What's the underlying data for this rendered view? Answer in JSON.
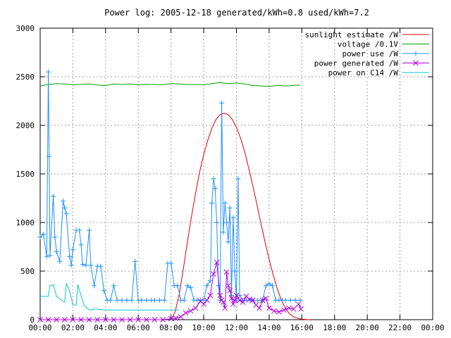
{
  "chart_data": {
    "type": "line",
    "title": "Power log: 2005-12-18 generated/kWh=0.8 used/kWh=7.2",
    "xlabel": "",
    "ylabel": "",
    "xlim_hours": [
      0,
      24
    ],
    "ylim": [
      0,
      3000
    ],
    "grid": true,
    "legend_position": "top-right",
    "x_ticks": [
      "00:00",
      "02:00",
      "04:00",
      "06:00",
      "08:00",
      "10:00",
      "12:00",
      "14:00",
      "16:00",
      "18:00",
      "20:00",
      "22:00",
      "00:00"
    ],
    "y_ticks": [
      "0",
      "500",
      "1000",
      "1500",
      "2000",
      "2500",
      "3000"
    ],
    "series": [
      {
        "name": "sunlight estimate /W",
        "color": "#e00000",
        "marker": "none",
        "x": [
          8.0,
          8.25,
          8.5,
          8.75,
          9.0,
          9.25,
          9.5,
          9.75,
          10.0,
          10.25,
          10.5,
          10.75,
          11.0,
          11.25,
          11.5,
          11.75,
          12.0,
          12.25,
          12.5,
          12.75,
          13.0,
          13.25,
          13.5,
          13.75,
          14.0,
          14.25,
          14.5,
          14.75,
          15.0,
          15.25,
          15.5,
          15.75,
          16.0,
          16.25,
          16.5
        ],
        "y": [
          0,
          80,
          260,
          520,
          800,
          1060,
          1300,
          1520,
          1700,
          1850,
          1970,
          2060,
          2110,
          2125,
          2110,
          2060,
          1980,
          1870,
          1730,
          1560,
          1380,
          1190,
          990,
          800,
          620,
          460,
          320,
          200,
          115,
          60,
          28,
          12,
          5,
          2,
          0
        ]
      },
      {
        "name": "voltage /0.1V",
        "color": "#00a000",
        "marker": "none",
        "x": [
          0.0,
          0.5,
          1.0,
          1.5,
          2.0,
          2.5,
          3.0,
          3.5,
          4.0,
          4.5,
          5.0,
          5.5,
          6.0,
          6.5,
          7.0,
          7.5,
          8.0,
          8.5,
          9.0,
          9.5,
          10.0,
          10.5,
          11.0,
          11.5,
          12.0,
          12.5,
          13.0,
          13.5,
          14.0,
          14.5,
          15.0,
          15.5,
          15.9
        ],
        "y": [
          2405,
          2420,
          2430,
          2425,
          2418,
          2422,
          2425,
          2415,
          2410,
          2425,
          2420,
          2425,
          2418,
          2422,
          2420,
          2418,
          2430,
          2425,
          2420,
          2420,
          2418,
          2430,
          2440,
          2430,
          2435,
          2425,
          2410,
          2405,
          2400,
          2410,
          2405,
          2410,
          2415
        ]
      },
      {
        "name": "power use /W",
        "color": "#1e90ff",
        "marker": "plus",
        "x": [
          0.0,
          0.2,
          0.4,
          0.5,
          0.55,
          0.6,
          0.8,
          0.9,
          1.0,
          1.2,
          1.4,
          1.5,
          1.6,
          1.8,
          1.9,
          2.0,
          2.2,
          2.4,
          2.5,
          2.6,
          2.8,
          3.0,
          3.1,
          3.3,
          3.5,
          3.7,
          3.9,
          4.1,
          4.3,
          4.5,
          4.7,
          5.0,
          5.3,
          5.6,
          5.8,
          6.0,
          6.2,
          6.5,
          6.8,
          7.0,
          7.3,
          7.6,
          7.8,
          8.0,
          8.2,
          8.4,
          8.6,
          8.8,
          9.0,
          9.2,
          9.4,
          9.6,
          9.8,
          10.0,
          10.2,
          10.4,
          10.5,
          10.6,
          10.7,
          10.8,
          10.9,
          11.0,
          11.1,
          11.2,
          11.3,
          11.4,
          11.5,
          11.6,
          11.7,
          11.8,
          11.9,
          12.0,
          12.1,
          12.2,
          12.4,
          12.6,
          12.8,
          13.0,
          13.3,
          13.6,
          13.8,
          14.0,
          14.2,
          14.4,
          14.6,
          14.8,
          15.0,
          15.3,
          15.6,
          15.9
        ],
        "y": [
          850,
          880,
          650,
          2550,
          1680,
          660,
          1270,
          850,
          700,
          600,
          1220,
          1150,
          1090,
          650,
          560,
          720,
          920,
          920,
          770,
          570,
          560,
          920,
          560,
          350,
          550,
          550,
          300,
          200,
          200,
          350,
          200,
          200,
          200,
          200,
          600,
          200,
          200,
          200,
          200,
          200,
          200,
          200,
          580,
          580,
          350,
          350,
          200,
          200,
          350,
          330,
          200,
          200,
          200,
          200,
          350,
          400,
          1200,
          1450,
          1350,
          1000,
          350,
          200,
          2230,
          900,
          1200,
          1000,
          800,
          1150,
          250,
          1050,
          500,
          200,
          1450,
          250,
          200,
          200,
          200,
          200,
          200,
          200,
          350,
          370,
          350,
          200,
          200,
          200,
          200,
          200,
          200,
          200
        ]
      },
      {
        "name": "power generated /W",
        "color": "#b000e0",
        "marker": "x",
        "x": [
          0.0,
          0.5,
          1.0,
          1.5,
          2.0,
          2.5,
          3.0,
          3.5,
          4.0,
          4.5,
          5.0,
          5.5,
          6.0,
          6.5,
          7.0,
          7.5,
          8.0,
          8.3,
          8.6,
          8.9,
          9.2,
          9.5,
          9.8,
          10.0,
          10.2,
          10.4,
          10.6,
          10.8,
          11.0,
          11.1,
          11.2,
          11.3,
          11.4,
          11.5,
          11.6,
          11.7,
          11.8,
          11.9,
          12.0,
          12.2,
          12.4,
          12.6,
          12.8,
          13.0,
          13.2,
          13.4,
          13.6,
          13.8,
          14.0,
          14.3,
          14.6,
          14.9,
          15.2,
          15.5,
          15.8,
          15.95
        ],
        "y": [
          0,
          0,
          0,
          0,
          0,
          0,
          0,
          0,
          0,
          0,
          0,
          0,
          0,
          0,
          0,
          0,
          10,
          15,
          30,
          70,
          90,
          120,
          190,
          160,
          200,
          250,
          470,
          590,
          250,
          200,
          180,
          120,
          490,
          350,
          300,
          220,
          160,
          200,
          250,
          200,
          180,
          240,
          210,
          200,
          150,
          120,
          200,
          220,
          120,
          90,
          80,
          100,
          120,
          110,
          160,
          110
        ]
      },
      {
        "name": "power on C14 /W",
        "color": "#00c8c8",
        "marker": "none",
        "x": [
          0.0,
          0.5,
          0.6,
          0.8,
          1.0,
          1.1,
          1.3,
          1.5,
          1.6,
          1.8,
          2.0,
          2.2,
          2.3,
          2.5,
          2.7,
          2.8,
          3.0,
          3.1,
          3.3,
          4.0,
          5.0,
          6.0,
          7.0,
          8.0,
          8.5
        ],
        "y": [
          240,
          240,
          350,
          360,
          240,
          230,
          200,
          180,
          370,
          300,
          150,
          150,
          360,
          250,
          140,
          130,
          100,
          100,
          110,
          100,
          100,
          100,
          100,
          100,
          100
        ]
      }
    ]
  }
}
